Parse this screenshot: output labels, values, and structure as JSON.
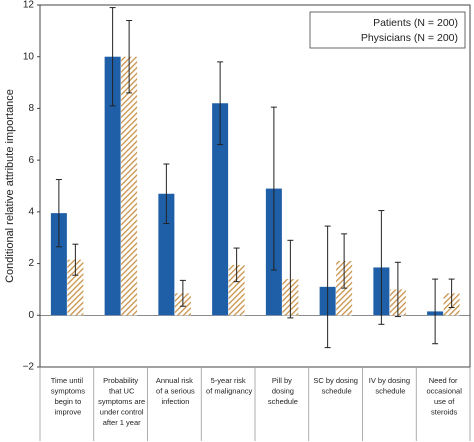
{
  "chart_data": {
    "type": "bar",
    "y_label": "Conditional relative attribute importance",
    "categories": [
      "Time until symptoms begin to improve",
      "Probability that UC symptoms are under control after 1 year",
      "Annual risk of a serious infection",
      "5-year risk of malignancy",
      "Pill by dosing schedule",
      "SC by dosing schedule",
      "IV by dosing schedule",
      "Need for occasional use of steroids"
    ],
    "series": [
      {
        "name": "Patients (N = 200)",
        "color": "#1f5fa8",
        "pattern": "solid",
        "values": [
          3.95,
          10.0,
          4.7,
          8.2,
          4.9,
          1.1,
          1.85,
          0.15
        ],
        "errors": [
          1.3,
          1.9,
          1.15,
          1.6,
          3.15,
          2.35,
          2.2,
          1.25
        ]
      },
      {
        "name": "Physicians (N = 200)",
        "color": "#c8924a",
        "pattern": "hatch",
        "values": [
          2.15,
          10.0,
          0.85,
          1.95,
          1.4,
          2.1,
          1.0,
          0.85
        ],
        "errors": [
          0.6,
          1.4,
          0.5,
          0.65,
          1.5,
          1.05,
          1.05,
          0.55
        ]
      }
    ],
    "ylim": [
      -2,
      12
    ],
    "yticks": [
      {
        "value": -2,
        "label": "−2"
      },
      0,
      2,
      4,
      6,
      8,
      10,
      12
    ],
    "legend": "upper right"
  }
}
